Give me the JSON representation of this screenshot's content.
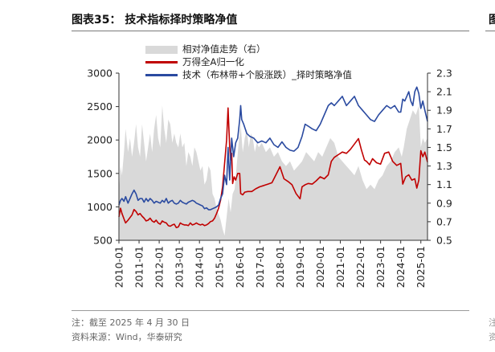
{
  "header": {
    "title": "图表35： 技术指标择时策略净值",
    "edge_glyph": "图"
  },
  "footer": {
    "note": "注：截至 2025 年 4 月 30 日",
    "source": "资料来源：Wind，华泰研究",
    "edge_note_1": "注",
    "edge_note_2": "资"
  },
  "colors": {
    "area": "#d9d9d9",
    "wind_index": "#c00000",
    "strategy": "#2a4aa0"
  },
  "chart_data": {
    "type": "line",
    "x_ticks": [
      "2010-01",
      "2011-01",
      "2012-01",
      "2013-01",
      "2014-01",
      "2015-01",
      "2016-01",
      "2017-01",
      "2018-01",
      "2019-01",
      "2020-01",
      "2021-01",
      "2022-01",
      "2023-01",
      "2024-01",
      "2025-01"
    ],
    "x_range": [
      2010.0,
      2025.33
    ],
    "y_left": {
      "ticks": [
        "3000",
        "2500",
        "2000",
        "1500",
        "1000",
        "500"
      ],
      "range": [
        500,
        3000
      ]
    },
    "y_right": {
      "ticks": [
        "2.3",
        "2.1",
        "1.9",
        "1.7",
        "1.5",
        "1.3",
        "1.1",
        "0.9",
        "0.7",
        "0.5"
      ],
      "range": [
        0.5,
        2.3
      ]
    },
    "series": [
      {
        "name": "相对净值走势（右）",
        "kind": "area",
        "axis": "right",
        "x": [
          2010.0,
          2010.08,
          2010.15,
          2010.25,
          2010.33,
          2010.45,
          2010.55,
          2010.65,
          2010.75,
          2010.85,
          2010.95,
          2011.05,
          2011.15,
          2011.25,
          2011.35,
          2011.45,
          2011.55,
          2011.65,
          2011.75,
          2011.85,
          2011.95,
          2012.05,
          2012.15,
          2012.25,
          2012.35,
          2012.45,
          2012.55,
          2012.65,
          2012.75,
          2012.85,
          2012.95,
          2013.05,
          2013.15,
          2013.25,
          2013.35,
          2013.45,
          2013.55,
          2013.65,
          2013.75,
          2013.85,
          2013.95,
          2014.05,
          2014.15,
          2014.25,
          2014.35,
          2014.45,
          2014.55,
          2014.65,
          2014.75,
          2014.85,
          2014.95,
          2015.05,
          2015.15,
          2015.25,
          2015.35,
          2015.45,
          2015.55,
          2015.65,
          2015.75,
          2015.85,
          2015.95,
          2016.05,
          2016.15,
          2016.25,
          2016.35,
          2016.45,
          2016.55,
          2016.65,
          2016.75,
          2016.85,
          2016.95,
          2017.1,
          2017.3,
          2017.5,
          2017.7,
          2017.9,
          2018.1,
          2018.3,
          2018.5,
          2018.7,
          2018.9,
          2019.1,
          2019.3,
          2019.5,
          2019.7,
          2019.9,
          2020.1,
          2020.3,
          2020.5,
          2020.7,
          2020.9,
          2021.1,
          2021.3,
          2021.5,
          2021.7,
          2021.9,
          2022.1,
          2022.3,
          2022.5,
          2022.7,
          2022.9,
          2023.1,
          2023.3,
          2023.5,
          2023.7,
          2023.9,
          2024.05,
          2024.15,
          2024.3,
          2024.45,
          2024.6,
          2024.75,
          2024.9,
          2025.0,
          2025.1,
          2025.2,
          2025.33
        ],
        "values": [
          1.03,
          1.3,
          1.2,
          1.45,
          1.7,
          1.45,
          1.6,
          1.4,
          1.55,
          1.75,
          1.5,
          1.4,
          1.75,
          1.55,
          1.35,
          1.5,
          1.65,
          1.45,
          1.7,
          1.85,
          1.6,
          1.5,
          1.95,
          1.7,
          1.55,
          1.8,
          1.75,
          1.55,
          1.65,
          1.55,
          1.5,
          1.65,
          1.5,
          1.55,
          1.3,
          1.45,
          1.4,
          1.3,
          1.5,
          1.45,
          1.35,
          1.25,
          1.3,
          1.1,
          1.15,
          1.3,
          1.25,
          1.0,
          0.95,
          0.85,
          0.78,
          0.72,
          0.62,
          0.55,
          0.75,
          0.95,
          0.8,
          1.0,
          1.05,
          1.3,
          1.55,
          1.75,
          1.45,
          1.6,
          1.7,
          1.5,
          1.65,
          1.6,
          1.45,
          1.55,
          1.5,
          1.55,
          1.45,
          1.5,
          1.4,
          1.45,
          1.35,
          1.3,
          1.35,
          1.25,
          1.3,
          1.35,
          1.45,
          1.4,
          1.35,
          1.45,
          1.4,
          1.5,
          1.6,
          1.55,
          1.4,
          1.35,
          1.3,
          1.25,
          1.2,
          1.3,
          1.15,
          1.05,
          1.1,
          1.05,
          1.15,
          1.2,
          1.3,
          1.35,
          1.45,
          1.5,
          1.4,
          1.5,
          1.7,
          1.8,
          1.9,
          1.85,
          1.95,
          1.5,
          1.6,
          1.55,
          1.6
        ]
      },
      {
        "name": "万得全A归一化",
        "kind": "line",
        "axis": "left",
        "x": [
          2010.0,
          2010.08,
          2010.15,
          2010.25,
          2010.33,
          2010.45,
          2010.55,
          2010.65,
          2010.75,
          2010.85,
          2010.95,
          2011.05,
          2011.15,
          2011.25,
          2011.35,
          2011.45,
          2011.55,
          2011.65,
          2011.75,
          2011.85,
          2011.95,
          2012.05,
          2012.15,
          2012.25,
          2012.35,
          2012.45,
          2012.55,
          2012.65,
          2012.75,
          2012.85,
          2012.95,
          2013.05,
          2013.15,
          2013.25,
          2013.35,
          2013.45,
          2013.55,
          2013.65,
          2013.75,
          2013.85,
          2013.95,
          2014.05,
          2014.15,
          2014.25,
          2014.35,
          2014.45,
          2014.55,
          2014.65,
          2014.75,
          2014.85,
          2014.95,
          2015.05,
          2015.15,
          2015.25,
          2015.35,
          2015.42,
          2015.5,
          2015.55,
          2015.6,
          2015.65,
          2015.72,
          2015.8,
          2015.9,
          2016.0,
          2016.05,
          2016.15,
          2016.25,
          2016.4,
          2016.6,
          2016.8,
          2017.0,
          2017.2,
          2017.4,
          2017.6,
          2017.8,
          2018.0,
          2018.2,
          2018.4,
          2018.6,
          2018.8,
          2019.0,
          2019.1,
          2019.25,
          2019.4,
          2019.6,
          2019.8,
          2020.0,
          2020.2,
          2020.4,
          2020.55,
          2020.7,
          2020.9,
          2021.1,
          2021.3,
          2021.5,
          2021.7,
          2021.9,
          2022.05,
          2022.2,
          2022.3,
          2022.45,
          2022.6,
          2022.8,
          2023.0,
          2023.2,
          2023.4,
          2023.6,
          2023.8,
          2024.0,
          2024.1,
          2024.25,
          2024.4,
          2024.55,
          2024.7,
          2024.8,
          2024.9,
          2025.0,
          2025.1,
          2025.2,
          2025.33
        ],
        "values": [
          850,
          980,
          900,
          820,
          760,
          800,
          840,
          880,
          960,
          930,
          880,
          900,
          860,
          830,
          790,
          800,
          830,
          790,
          770,
          800,
          760,
          740,
          790,
          770,
          760,
          720,
          710,
          730,
          740,
          690,
          700,
          760,
          740,
          730,
          730,
          720,
          760,
          730,
          740,
          760,
          740,
          730,
          740,
          720,
          730,
          750,
          780,
          790,
          830,
          900,
          980,
          1100,
          1300,
          1650,
          2000,
          2480,
          1900,
          1700,
          1800,
          1350,
          1450,
          1400,
          1500,
          1500,
          1200,
          1180,
          1220,
          1230,
          1230,
          1270,
          1300,
          1320,
          1340,
          1360,
          1480,
          1600,
          1420,
          1380,
          1330,
          1200,
          1120,
          1300,
          1330,
          1350,
          1340,
          1390,
          1450,
          1420,
          1480,
          1680,
          1740,
          1780,
          1820,
          1800,
          1860,
          1940,
          2020,
          1850,
          1700,
          1680,
          1630,
          1720,
          1660,
          1640,
          1800,
          1820,
          1680,
          1620,
          1650,
          1340,
          1450,
          1480,
          1400,
          1420,
          1280,
          1400,
          1840,
          1750,
          1820,
          1670
        ]
      },
      {
        "name": "技术（布林带+个股涨跌）_择时策略净值",
        "kind": "line",
        "axis": "right",
        "x": [
          2010.0,
          2010.08,
          2010.15,
          2010.25,
          2010.33,
          2010.45,
          2010.55,
          2010.65,
          2010.75,
          2010.85,
          2010.95,
          2011.05,
          2011.15,
          2011.25,
          2011.35,
          2011.45,
          2011.55,
          2011.65,
          2011.75,
          2011.85,
          2011.95,
          2012.05,
          2012.15,
          2012.25,
          2012.35,
          2012.45,
          2012.55,
          2012.65,
          2012.75,
          2012.85,
          2012.95,
          2013.05,
          2013.15,
          2013.25,
          2013.35,
          2013.45,
          2013.55,
          2013.65,
          2013.75,
          2013.85,
          2013.95,
          2014.05,
          2014.15,
          2014.25,
          2014.35,
          2014.45,
          2014.55,
          2014.65,
          2014.75,
          2014.85,
          2014.95,
          2015.05,
          2015.15,
          2015.25,
          2015.35,
          2015.42,
          2015.5,
          2015.6,
          2015.7,
          2015.8,
          2015.9,
          2016.0,
          2016.05,
          2016.1,
          2016.2,
          2016.35,
          2016.5,
          2016.7,
          2016.9,
          2017.1,
          2017.3,
          2017.5,
          2017.7,
          2017.9,
          2018.1,
          2018.3,
          2018.5,
          2018.7,
          2018.9,
          2019.1,
          2019.25,
          2019.4,
          2019.6,
          2019.8,
          2020.0,
          2020.2,
          2020.4,
          2020.55,
          2020.7,
          2020.9,
          2021.1,
          2021.3,
          2021.5,
          2021.7,
          2021.9,
          2022.1,
          2022.3,
          2022.5,
          2022.7,
          2022.9,
          2023.1,
          2023.3,
          2023.5,
          2023.7,
          2023.9,
          2024.0,
          2024.1,
          2024.2,
          2024.3,
          2024.4,
          2024.5,
          2024.6,
          2024.7,
          2024.8,
          2024.9,
          2025.0,
          2025.1,
          2025.2,
          2025.33
        ],
        "values": [
          0.88,
          0.93,
          0.95,
          0.92,
          0.97,
          0.9,
          0.95,
          1.0,
          1.04,
          1.0,
          0.93,
          0.95,
          0.95,
          0.91,
          0.95,
          0.92,
          0.95,
          0.93,
          0.9,
          0.92,
          0.91,
          0.9,
          0.93,
          0.91,
          0.95,
          0.9,
          0.92,
          0.93,
          0.9,
          0.89,
          0.9,
          0.93,
          0.91,
          0.9,
          0.89,
          0.91,
          0.92,
          0.93,
          0.92,
          0.9,
          0.89,
          0.88,
          0.87,
          0.84,
          0.85,
          0.83,
          0.83,
          0.84,
          0.85,
          0.86,
          0.88,
          0.95,
          1.0,
          1.2,
          1.1,
          1.5,
          1.15,
          1.6,
          1.4,
          1.55,
          1.6,
          1.8,
          1.95,
          1.8,
          1.75,
          1.65,
          1.62,
          1.6,
          1.55,
          1.57,
          1.55,
          1.6,
          1.53,
          1.5,
          1.56,
          1.5,
          1.47,
          1.46,
          1.5,
          1.62,
          1.75,
          1.73,
          1.7,
          1.68,
          1.75,
          1.85,
          1.95,
          1.98,
          1.95,
          2.0,
          2.05,
          1.95,
          2.0,
          2.05,
          1.95,
          1.9,
          1.85,
          1.8,
          1.78,
          1.85,
          1.9,
          1.95,
          1.92,
          1.95,
          1.88,
          1.88,
          2.02,
          2.0,
          2.05,
          2.1,
          2.0,
          1.95,
          2.1,
          2.15,
          2.08,
          1.92,
          2.0,
          1.9,
          1.78
        ]
      }
    ]
  }
}
